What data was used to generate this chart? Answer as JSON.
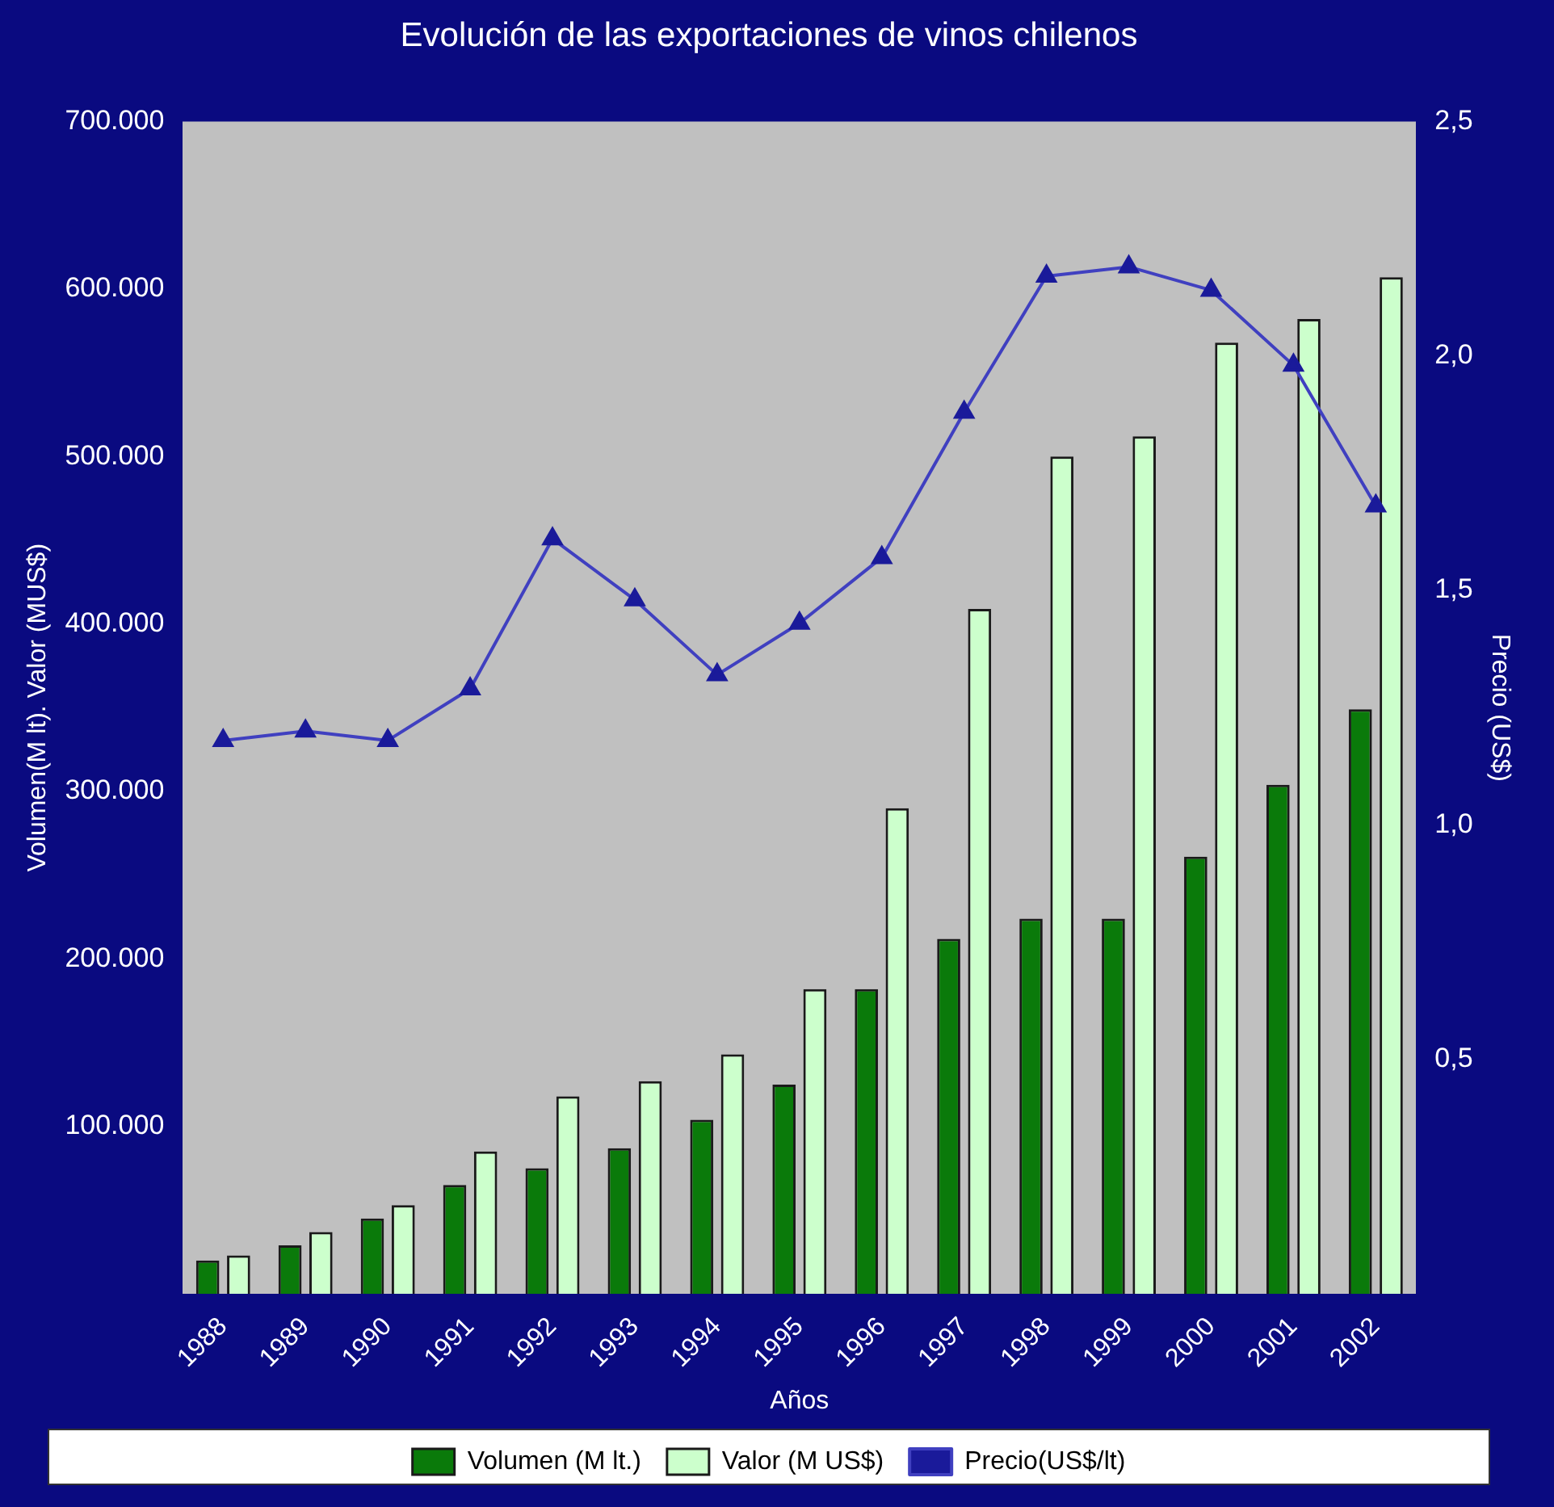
{
  "chart_data": {
    "type": "bar",
    "title": "Evolución de las exportaciones de vinos chilenos",
    "xlabel": "Años",
    "ylabel": "Volumen(M lt). Valor (MUS$)",
    "y2label": "Precio (US$)",
    "categories": [
      "1988",
      "1989",
      "1990",
      "1991",
      "1992",
      "1993",
      "1994",
      "1995",
      "1996",
      "1997",
      "1998",
      "1999",
      "2000",
      "2001",
      "2002"
    ],
    "series": [
      {
        "name": "Volumen (M lt.)",
        "color": "#0a7a0a",
        "values": [
          20000,
          29000,
          45000,
          65000,
          75000,
          87000,
          104000,
          125000,
          182000,
          212000,
          224000,
          224000,
          261000,
          304000,
          349000
        ]
      },
      {
        "name": "Valor (M US$)",
        "color": "#ccffcc",
        "values": [
          23000,
          37000,
          53000,
          85000,
          118000,
          127000,
          143000,
          182000,
          290000,
          409000,
          500000,
          512000,
          568000,
          582000,
          607000
        ]
      },
      {
        "name": "Precio(US$/lt)",
        "type": "line",
        "axis": "y2",
        "color": "#4040c0",
        "values": [
          1.18,
          1.2,
          1.18,
          1.29,
          1.61,
          1.48,
          1.32,
          1.43,
          1.57,
          1.88,
          2.17,
          2.19,
          2.14,
          1.98,
          1.68
        ]
      }
    ],
    "ylim": [
      0,
      700000
    ],
    "yticks": [
      {
        "value": 0,
        "label": null
      },
      {
        "value": 100000,
        "label": "100.000"
      },
      {
        "value": 200000,
        "label": "200.000"
      },
      {
        "value": 300000,
        "label": "300.000"
      },
      {
        "value": 400000,
        "label": "400.000"
      },
      {
        "value": 500000,
        "label": "500.000"
      },
      {
        "value": 600000,
        "label": "600.000"
      },
      {
        "value": 700000,
        "label": "700.000"
      }
    ],
    "y2lim": [
      0,
      2.5
    ],
    "y2ticks": [
      {
        "value": 0,
        "label": null
      },
      {
        "value": 0.5,
        "label": "0,5"
      },
      {
        "value": 1,
        "label": "1,0"
      },
      {
        "value": 1.5,
        "label": "1,5"
      },
      {
        "value": 2,
        "label": "2,0"
      },
      {
        "value": 2.5,
        "label": "2,5"
      }
    ],
    "grid": false,
    "legend": "bottom",
    "marker": "triangle",
    "line_style": "solid"
  }
}
